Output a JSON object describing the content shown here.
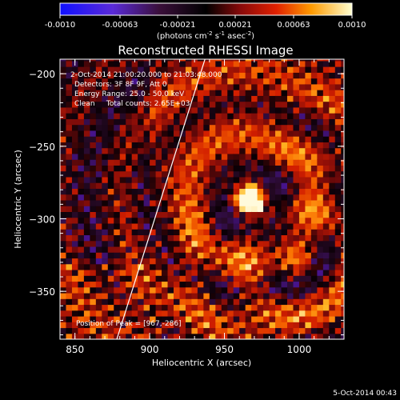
{
  "chart_data": {
    "type": "heatmap",
    "title": "Reconstructed RHESSI Image",
    "xlabel": "Heliocentric X (arcsec)",
    "ylabel": "Heliocentric Y (arcsec)",
    "xlim": [
      840,
      1030
    ],
    "ylim": [
      -383,
      -190
    ],
    "xticks": [
      850,
      900,
      950,
      1000
    ],
    "yticks": [
      -200,
      -250,
      -300,
      -350
    ],
    "colorbar": {
      "range": [
        -0.001,
        0.001
      ],
      "tick_labels": [
        "-0.0010",
        "-0.00063",
        "-0.00021",
        "0.00021",
        "0.00063",
        "0.0010"
      ],
      "units_prefix": "(photons cm",
      "units_exp1": "-2",
      "units_mid1": " s",
      "units_exp2": "-1",
      "units_mid2": " asec",
      "units_exp3": "-2",
      "units_suffix": ")"
    },
    "annotations": [
      "2-Oct-2014 21:00:20.000 to 21:03:48.000",
      "Detectors: 3F 8F 9F, Att 0",
      "Energy Range: 25.0 - 50.0 keV",
      "Clean     Total counts: 2.65E+03"
    ],
    "peak_label": "Position of Peak = [967,-286]",
    "peak": {
      "x": 967,
      "y": -286
    },
    "limb_line": [
      [
        878,
        -383
      ],
      [
        937,
        -190
      ]
    ],
    "footer": "5-Oct-2014 00:43"
  },
  "colors": {
    "background": "#000000",
    "axes": "#ffffff",
    "limb": "#ffffff"
  }
}
